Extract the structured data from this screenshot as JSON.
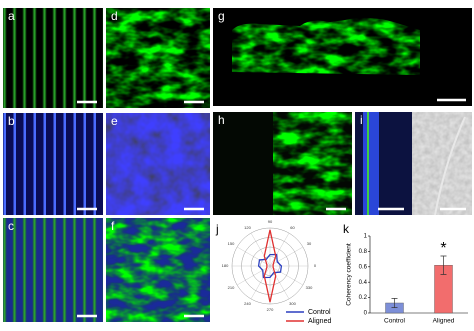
{
  "figure": {
    "panels": [
      "a",
      "b",
      "c",
      "d",
      "e",
      "f",
      "g",
      "h",
      "i"
    ]
  },
  "chart_data": [
    {
      "type": "polar",
      "panel_label": "j",
      "theta": [
        0,
        30,
        60,
        90,
        120,
        150,
        180,
        210,
        240,
        270,
        300,
        330
      ],
      "thetaticks": [
        0,
        30,
        60,
        90,
        120,
        150,
        180,
        210,
        240,
        270,
        300,
        330
      ],
      "rlim": [
        0,
        1
      ],
      "rticks": [
        0.25,
        0.5,
        0.75,
        1
      ],
      "series": [
        {
          "name": "Control",
          "color": "#2b3fbf",
          "values": [
            0.3,
            0.22,
            0.35,
            0.3,
            0.2,
            0.32,
            0.3,
            0.22,
            0.35,
            0.3,
            0.2,
            0.32
          ]
        },
        {
          "name": "Aligned",
          "color": "#e03030",
          "values": [
            0.08,
            0.1,
            0.3,
            0.95,
            0.3,
            0.1,
            0.08,
            0.1,
            0.3,
            0.95,
            0.3,
            0.1
          ]
        }
      ]
    },
    {
      "type": "bar",
      "panel_label": "k",
      "y_label": "Coherency coefficient",
      "categories": [
        "Control",
        "Aligned"
      ],
      "values": [
        0.13,
        0.62
      ],
      "errors": [
        0.06,
        0.12
      ],
      "colors": [
        "#7d8fd8",
        "#f26d6d"
      ],
      "ylim": [
        0,
        1
      ],
      "yticks": [
        0,
        0.2,
        0.4,
        0.6,
        0.8,
        1
      ],
      "annotation": "*"
    }
  ]
}
